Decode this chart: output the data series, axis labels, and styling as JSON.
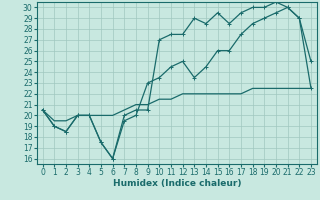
{
  "xlabel": "Humidex (Indice chaleur)",
  "ylabel": "",
  "xlim": [
    -0.5,
    23.5
  ],
  "ylim": [
    15.5,
    30.5
  ],
  "xticks": [
    0,
    1,
    2,
    3,
    4,
    5,
    6,
    7,
    8,
    9,
    10,
    11,
    12,
    13,
    14,
    15,
    16,
    17,
    18,
    19,
    20,
    21,
    22,
    23
  ],
  "yticks": [
    16,
    17,
    18,
    19,
    20,
    21,
    22,
    23,
    24,
    25,
    26,
    27,
    28,
    29,
    30
  ],
  "bg_color": "#c8e8e0",
  "grid_color": "#a0c8c0",
  "line_color": "#1a6b6b",
  "line1_x": [
    0,
    1,
    2,
    3,
    4,
    5,
    6,
    7,
    8,
    9,
    10,
    11,
    12,
    13,
    14,
    15,
    16,
    17,
    18,
    19,
    20,
    21,
    22,
    23
  ],
  "line1_y": [
    20.5,
    19.0,
    18.5,
    20.0,
    20.0,
    17.5,
    16.0,
    19.5,
    20.0,
    23.0,
    23.5,
    24.5,
    25.0,
    23.5,
    24.5,
    26.0,
    26.0,
    27.5,
    28.5,
    29.0,
    29.5,
    30.0,
    29.0,
    22.5
  ],
  "line2_x": [
    0,
    1,
    2,
    3,
    4,
    5,
    6,
    7,
    8,
    9,
    10,
    11,
    12,
    13,
    14,
    15,
    16,
    17,
    18,
    19,
    20,
    21,
    22,
    23
  ],
  "line2_y": [
    20.5,
    19.0,
    18.5,
    20.0,
    20.0,
    17.5,
    16.0,
    20.0,
    20.5,
    20.5,
    27.0,
    27.5,
    27.5,
    29.0,
    28.5,
    29.5,
    28.5,
    29.5,
    30.0,
    30.0,
    30.5,
    30.0,
    29.0,
    25.0
  ],
  "line3_x": [
    0,
    1,
    2,
    3,
    4,
    5,
    6,
    7,
    8,
    9,
    10,
    11,
    12,
    13,
    14,
    15,
    16,
    17,
    18,
    19,
    20,
    21,
    22,
    23
  ],
  "line3_y": [
    20.5,
    19.5,
    19.5,
    20.0,
    20.0,
    20.0,
    20.0,
    20.5,
    21.0,
    21.0,
    21.5,
    21.5,
    22.0,
    22.0,
    22.0,
    22.0,
    22.0,
    22.0,
    22.5,
    22.5,
    22.5,
    22.5,
    22.5,
    22.5
  ],
  "linewidth": 0.9,
  "fontsize_ticks": 5.5,
  "fontsize_label": 6.5
}
